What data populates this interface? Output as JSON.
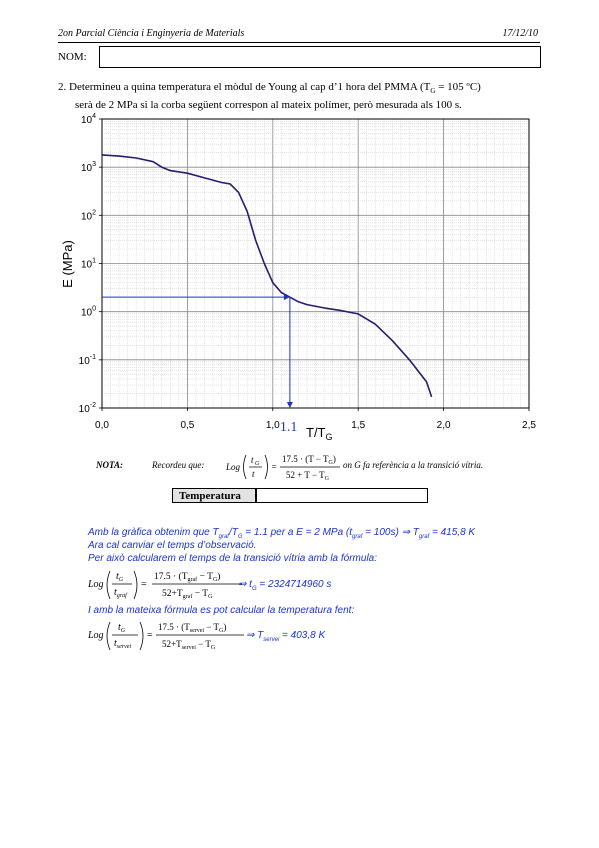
{
  "header": {
    "course": "2on Parcial Ciència i Enginyeria de Materials",
    "date": "17/12/10"
  },
  "nom_label": "NOM:",
  "question": {
    "line1_a": "2. Determineu a quina temperatura el mòdul de Young al cap d’1 hora del PMMA (T",
    "line1_sub": "G",
    "line1_b": " = 105 ºC)",
    "line2": "serà de 2 MPa si la corba següent correspon al mateix polímer, però mesurada als 100 s."
  },
  "chart_data": {
    "type": "line",
    "xlabel": "T/T",
    "xlabel_sub": "G",
    "ylabel": "E (MPa)",
    "x_ticks": [
      "0,0",
      "0,5",
      "1,0",
      "1,5",
      "2,0",
      "2,5"
    ],
    "y_ticks": [
      {
        "base": "10",
        "exp": "4"
      },
      {
        "base": "10",
        "exp": "3"
      },
      {
        "base": "10",
        "exp": "2"
      },
      {
        "base": "10",
        "exp": "1"
      },
      {
        "base": "10",
        "exp": "0"
      },
      {
        "base": "10",
        "exp": "-1"
      },
      {
        "base": "10",
        "exp": "-2"
      }
    ],
    "xlim": [
      0,
      2.5
    ],
    "ylim": [
      0.01,
      10000
    ],
    "y_scale": "log",
    "grid": true,
    "series": [
      {
        "x": [
          0.0,
          0.1,
          0.2,
          0.3,
          0.35,
          0.4,
          0.5,
          0.6,
          0.7,
          0.75,
          0.8,
          0.85,
          0.9,
          0.95,
          1.0,
          1.05,
          1.1,
          1.15,
          1.2,
          1.3,
          1.4,
          1.5,
          1.6,
          1.7,
          1.8,
          1.9,
          1.93
        ],
        "y": [
          1800,
          1700,
          1550,
          1300,
          1000,
          850,
          750,
          600,
          480,
          450,
          300,
          120,
          30,
          10,
          4,
          2.5,
          2,
          1.6,
          1.4,
          1.2,
          1.05,
          0.9,
          0.55,
          0.25,
          0.1,
          0.035,
          0.017
        ]
      }
    ],
    "annotation": {
      "label": "1.1",
      "x": 1.1,
      "y": 2
    },
    "colors": {
      "curve": "#2a1a6e",
      "arrow": "#1a33cc"
    }
  },
  "nota": {
    "label": "NOTA:",
    "text": "Recordeu que:",
    "formula_lhs": "Log",
    "frac_num": "t",
    "frac_num_sub": "G",
    "frac_den": "t",
    "rhs_num": "17.5 · (T − T",
    "rhs_num_sub": "G",
    "rhs_num_end": ")",
    "rhs_den": "52 + T − T",
    "rhs_den_sub": "G",
    "after": "on G fa referència a la transició vítria."
  },
  "temperatura": {
    "label": "Temperatura",
    "value": ""
  },
  "answer": {
    "l1_a": "Amb la gràfica obtenim que T",
    "l1_s1": "graf",
    "l1_b": "/T",
    "l1_s2": "G",
    "l1_c": " = 1.1 per a E = 2 MPa (t",
    "l1_s3": "graf",
    "l1_d": " = 100s) ⇒ T",
    "l1_s4": "graf",
    "l1_e": " = 415,8 K",
    "l2": "Ara cal canviar el temps d’observació.",
    "l3": "Per això calcularem el temps de la transició vítria amb la fórmula:",
    "f1_result_a": "⇒ t",
    "f1_result_sub": "G",
    "f1_result_b": " = 2324714960 s",
    "l4": "I amb la mateixa fórmula es pot calcular la temperatura fent:",
    "f2_result_a": "⇒ T",
    "f2_result_sub": "servei",
    "f2_result_b": " = 403,8 K",
    "f1": {
      "lhs": "Log",
      "num": "t",
      "num_sub": "G",
      "den": "t",
      "den_sub": "graf",
      "rnum": "17.5 · (T",
      "rnum_sub": "graf",
      "rnum_mid": " − T",
      "rnum_sub2": "G",
      "rnum_end": ")",
      "rden": "52+T",
      "rden_sub": "graf",
      "rden_mid": " − T",
      "rden_sub2": "G"
    },
    "f2": {
      "lhs": "Log",
      "num": "t",
      "num_sub": "G",
      "den": "t",
      "den_sub": "servei",
      "rnum": "17.5 · (T",
      "rnum_sub": "servei",
      "rnum_mid": " − T",
      "rnum_sub2": "G",
      "rnum_end": ")",
      "rden": "52+T",
      "rden_sub": "servei",
      "rden_mid": " − T",
      "rden_sub2": "G"
    }
  }
}
